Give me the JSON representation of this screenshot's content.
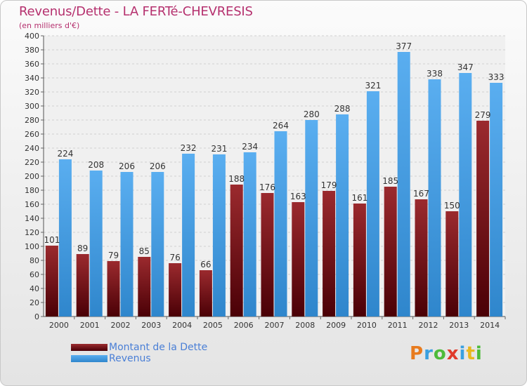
{
  "title": "Revenus/Dette - LA FERTé-CHEVRESIS",
  "subtitle": "(en milliers d'€)",
  "brand": {
    "letters": [
      "P",
      "r",
      "o",
      "x",
      "i",
      "t",
      "i"
    ],
    "colors": [
      "#e87b1e",
      "#3aa0e0",
      "#4dbb3a",
      "#e03a2a",
      "#3aa0e0",
      "#e8b81e",
      "#4dbb3a"
    ]
  },
  "chart_data": {
    "type": "bar",
    "categories": [
      "2000",
      "2001",
      "2002",
      "2003",
      "2004",
      "2005",
      "2006",
      "2007",
      "2008",
      "2009",
      "2010",
      "2011",
      "2012",
      "2013",
      "2014"
    ],
    "series": [
      {
        "name": "Montant de la Dette",
        "values": [
          101,
          89,
          79,
          85,
          76,
          66,
          188,
          176,
          163,
          179,
          161,
          185,
          167,
          150,
          279
        ],
        "color": "#7a1418"
      },
      {
        "name": "Revenus",
        "values": [
          224,
          208,
          206,
          206,
          232,
          231,
          234,
          264,
          280,
          288,
          321,
          377,
          338,
          347,
          333
        ],
        "color": "#3d9ae0"
      }
    ],
    "yticks": [
      "0",
      "20",
      "40",
      "60",
      "80",
      "100",
      "120",
      "140",
      "160",
      "180",
      "200",
      "220",
      "240",
      "260",
      "280",
      "300",
      "320",
      "340",
      "360",
      "380",
      "400"
    ],
    "ylim": [
      0,
      400
    ],
    "grid": true,
    "legend": "bottom-left"
  }
}
